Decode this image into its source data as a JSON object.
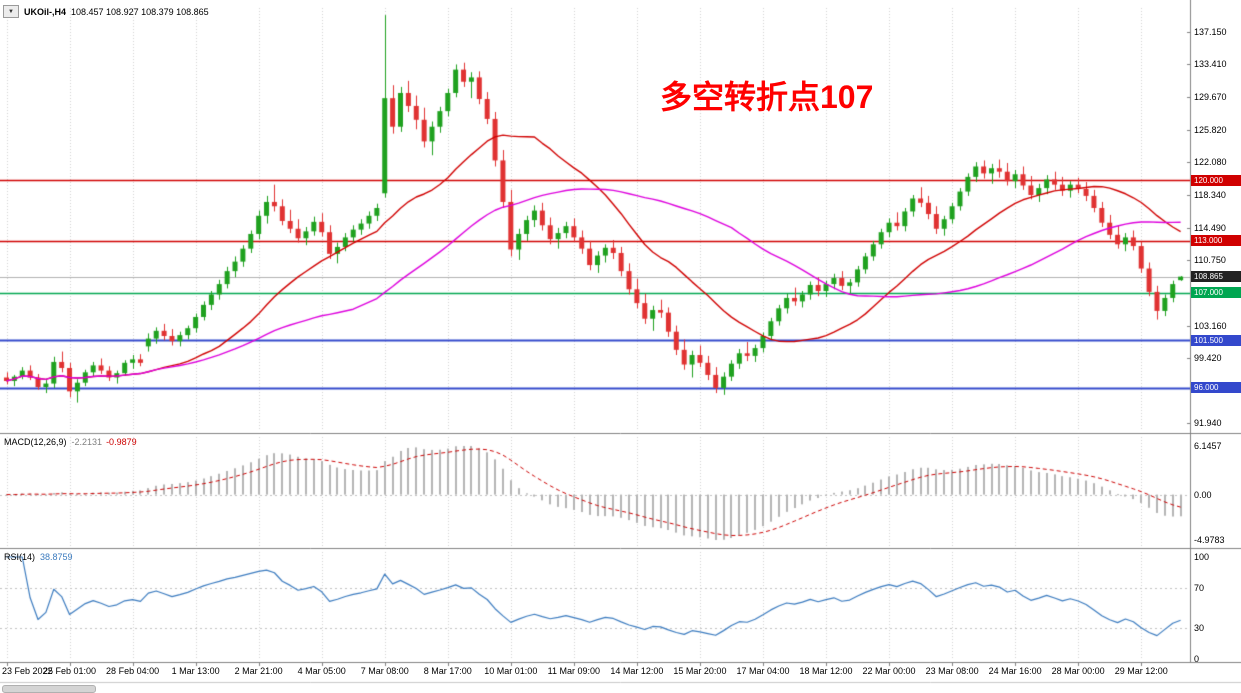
{
  "window": {
    "symbol_label": "UKOil-,H4",
    "ohlc_label": "108.457 108.927 108.379 108.865"
  },
  "annotation": {
    "text": "多空转折点107",
    "color": "#ff0000"
  },
  "price_panel": {
    "axis_labels": [
      "137.150",
      "133.410",
      "129.670",
      "125.820",
      "122.080",
      "118.340",
      "114.490",
      "110.750",
      "103.160",
      "99.420",
      "91.940"
    ],
    "current_price": {
      "value": 108.865,
      "label": "108.865",
      "badge_bg": "#222222",
      "line_color": "#b0b0b0"
    },
    "hlines": [
      {
        "price": 120.0,
        "label": "120.000",
        "color": "#d00000",
        "width": 1.5
      },
      {
        "price": 113.0,
        "label": "113.000",
        "color": "#d00000",
        "width": 1.5
      },
      {
        "price": 107.0,
        "label": "107.000",
        "color": "#00a651",
        "width": 1.5
      },
      {
        "price": 101.5,
        "label": "101.500",
        "color": "#3348cc",
        "width": 2
      },
      {
        "price": 96.0,
        "label": "96.000",
        "color": "#3348cc",
        "width": 2
      }
    ]
  },
  "macd_panel": {
    "label": "MACD(12,26,9)",
    "main_value": "-2.2131",
    "signal_value": "-0.9879",
    "axis_max": "6.1457",
    "axis_zero": "0.00",
    "axis_min": "-4.9783"
  },
  "rsi_panel": {
    "label": "RSI(14)",
    "value": "38.8759",
    "axis_labels": [
      "100",
      "70",
      "30",
      "0"
    ],
    "levels": [
      70,
      30
    ]
  },
  "time_axis": {
    "labels": [
      {
        "i": 0,
        "t": "23 Feb 2022"
      },
      {
        "i": 8,
        "t": "25 Feb 01:00"
      },
      {
        "i": 16,
        "t": "28 Feb 04:00"
      },
      {
        "i": 24,
        "t": "1 Mar 13:00"
      },
      {
        "i": 32,
        "t": "2 Mar 21:00"
      },
      {
        "i": 40,
        "t": "4 Mar 05:00"
      },
      {
        "i": 48,
        "t": "7 Mar 08:00"
      },
      {
        "i": 56,
        "t": "8 Mar 17:00"
      },
      {
        "i": 64,
        "t": "10 Mar 01:00"
      },
      {
        "i": 72,
        "t": "11 Mar 09:00"
      },
      {
        "i": 80,
        "t": "14 Mar 12:00"
      },
      {
        "i": 88,
        "t": "15 Mar 20:00"
      },
      {
        "i": 96,
        "t": "17 Mar 04:00"
      },
      {
        "i": 104,
        "t": "18 Mar 12:00"
      },
      {
        "i": 112,
        "t": "22 Mar 00:00"
      },
      {
        "i": 120,
        "t": "23 Mar 08:00"
      },
      {
        "i": 128,
        "t": "24 Mar 16:00"
      },
      {
        "i": 136,
        "t": "28 Mar 00:00"
      },
      {
        "i": 144,
        "t": "29 Mar 12:00"
      }
    ]
  },
  "chart_data": {
    "type": "candlestick",
    "symbol": "UKOil-",
    "timeframe": "H4",
    "title": "UKOil- H4 candlestick chart with MACD(12,26,9) and RSI(14) subpanels",
    "ylim": [
      91.94,
      139.93
    ],
    "colors": {
      "up_candle": "#1fa11f",
      "down_candle": "#e03232",
      "ma_fast": "#d00000",
      "ma_slow": "#dd00dd",
      "macd_histogram": "#b4b4b4",
      "macd_signal": "#cc0000",
      "macd_zero_line": "#c0c0c0",
      "rsi_line": "#3b7bbf",
      "rsi_level_line": "#c0c0c0",
      "grid": "#d0d0d0",
      "separator": "#808080"
    },
    "overlays": [
      {
        "name": "ma-fast",
        "type": "sma",
        "period": 20,
        "color": "#d00000"
      },
      {
        "name": "ma-slow",
        "type": "sma",
        "period": 45,
        "color": "#dd00dd"
      }
    ],
    "indicators": {
      "macd": {
        "fast": 12,
        "slow": 26,
        "signal": 9
      },
      "rsi": {
        "period": 14
      }
    },
    "candles": [
      [
        97.2,
        97.8,
        96.4,
        96.8
      ],
      [
        96.8,
        97.5,
        96.2,
        97.3
      ],
      [
        97.3,
        98.4,
        97.0,
        98.0
      ],
      [
        98.0,
        98.6,
        96.9,
        97.2
      ],
      [
        97.2,
        97.6,
        95.8,
        96.1
      ],
      [
        96.1,
        96.9,
        95.4,
        96.5
      ],
      [
        96.5,
        99.6,
        96.0,
        99.0
      ],
      [
        99.0,
        100.2,
        97.8,
        98.3
      ],
      [
        98.3,
        98.9,
        94.9,
        95.6
      ],
      [
        95.6,
        97.0,
        94.3,
        96.6
      ],
      [
        96.6,
        98.1,
        96.2,
        97.8
      ],
      [
        97.8,
        99.0,
        97.3,
        98.6
      ],
      [
        98.6,
        99.4,
        97.6,
        98.0
      ],
      [
        98.0,
        98.5,
        96.8,
        97.2
      ],
      [
        97.2,
        98.0,
        96.5,
        97.7
      ],
      [
        97.7,
        99.2,
        97.4,
        98.9
      ],
      [
        98.9,
        99.8,
        98.2,
        99.3
      ],
      [
        99.3,
        99.9,
        98.5,
        98.9
      ],
      [
        100.8,
        102.3,
        100.2,
        101.7
      ],
      [
        101.7,
        103.0,
        101.1,
        102.6
      ],
      [
        102.6,
        103.4,
        101.5,
        102.0
      ],
      [
        102.0,
        102.8,
        100.9,
        101.4
      ],
      [
        101.4,
        102.5,
        100.8,
        102.1
      ],
      [
        102.1,
        103.2,
        101.6,
        102.9
      ],
      [
        102.9,
        104.6,
        102.4,
        104.2
      ],
      [
        104.2,
        106.0,
        103.8,
        105.6
      ],
      [
        105.6,
        107.2,
        105.0,
        106.8
      ],
      [
        106.8,
        108.5,
        106.2,
        108.0
      ],
      [
        108.0,
        110.0,
        107.5,
        109.5
      ],
      [
        109.5,
        111.2,
        108.8,
        110.6
      ],
      [
        110.6,
        112.5,
        110.0,
        112.1
      ],
      [
        112.1,
        114.2,
        111.6,
        113.8
      ],
      [
        113.8,
        116.5,
        113.2,
        115.9
      ],
      [
        115.9,
        118.2,
        115.0,
        117.5
      ],
      [
        117.5,
        119.5,
        116.4,
        117.0
      ],
      [
        117.0,
        117.8,
        114.8,
        115.3
      ],
      [
        115.3,
        116.6,
        113.9,
        114.4
      ],
      [
        114.4,
        115.5,
        112.8,
        113.3
      ],
      [
        113.3,
        114.6,
        112.5,
        114.1
      ],
      [
        114.1,
        115.8,
        113.6,
        115.2
      ],
      [
        115.2,
        116.2,
        113.5,
        114.0
      ],
      [
        114.0,
        114.8,
        110.9,
        111.5
      ],
      [
        111.5,
        112.8,
        110.4,
        112.3
      ],
      [
        112.3,
        113.9,
        111.8,
        113.4
      ],
      [
        113.4,
        114.8,
        112.9,
        114.3
      ],
      [
        114.3,
        115.5,
        113.7,
        115.0
      ],
      [
        115.0,
        116.4,
        114.4,
        115.9
      ],
      [
        115.9,
        117.3,
        115.3,
        116.8
      ],
      [
        118.5,
        139.1,
        118.0,
        129.5
      ],
      [
        129.5,
        131.0,
        125.4,
        126.2
      ],
      [
        126.2,
        130.8,
        125.6,
        130.1
      ],
      [
        130.1,
        131.5,
        127.9,
        128.6
      ],
      [
        128.6,
        129.8,
        125.9,
        127.0
      ],
      [
        127.0,
        128.4,
        123.8,
        124.5
      ],
      [
        124.5,
        126.8,
        122.9,
        126.2
      ],
      [
        126.2,
        128.5,
        125.5,
        128.0
      ],
      [
        128.0,
        130.6,
        127.4,
        130.1
      ],
      [
        130.1,
        133.4,
        129.6,
        132.8
      ],
      [
        132.8,
        133.6,
        130.8,
        131.4
      ],
      [
        131.4,
        132.5,
        129.5,
        131.9
      ],
      [
        131.9,
        132.6,
        128.8,
        129.4
      ],
      [
        129.4,
        130.2,
        126.5,
        127.1
      ],
      [
        127.1,
        127.9,
        121.6,
        122.3
      ],
      [
        122.3,
        123.5,
        116.8,
        117.5
      ],
      [
        117.5,
        118.9,
        111.2,
        112.0
      ],
      [
        112.0,
        114.4,
        110.8,
        113.8
      ],
      [
        113.8,
        115.9,
        113.0,
        115.4
      ],
      [
        115.4,
        117.1,
        114.6,
        116.5
      ],
      [
        116.5,
        117.4,
        114.2,
        114.8
      ],
      [
        114.8,
        115.7,
        112.6,
        113.2
      ],
      [
        113.2,
        114.5,
        112.1,
        113.9
      ],
      [
        113.9,
        115.2,
        113.3,
        114.7
      ],
      [
        114.7,
        115.6,
        112.9,
        113.4
      ],
      [
        113.4,
        114.2,
        111.5,
        112.1
      ],
      [
        112.1,
        113.0,
        109.6,
        110.2
      ],
      [
        110.2,
        111.8,
        109.3,
        111.3
      ],
      [
        111.3,
        112.6,
        110.5,
        112.2
      ],
      [
        112.2,
        113.1,
        110.9,
        111.6
      ],
      [
        111.6,
        112.3,
        108.9,
        109.5
      ],
      [
        109.5,
        110.4,
        106.8,
        107.4
      ],
      [
        107.4,
        108.6,
        105.2,
        105.8
      ],
      [
        105.8,
        106.9,
        103.4,
        104.0
      ],
      [
        104.0,
        105.5,
        102.6,
        105.0
      ],
      [
        105.0,
        106.2,
        104.1,
        104.7
      ],
      [
        104.7,
        105.3,
        101.9,
        102.5
      ],
      [
        102.5,
        103.2,
        99.8,
        100.4
      ],
      [
        100.4,
        101.6,
        98.1,
        98.7
      ],
      [
        98.7,
        100.3,
        97.2,
        99.8
      ],
      [
        99.8,
        100.9,
        98.4,
        98.9
      ],
      [
        98.9,
        99.7,
        96.9,
        97.5
      ],
      [
        97.5,
        98.4,
        95.4,
        96.0
      ],
      [
        96.0,
        97.8,
        95.2,
        97.3
      ],
      [
        97.3,
        99.2,
        96.8,
        98.8
      ],
      [
        98.8,
        100.5,
        98.2,
        100.0
      ],
      [
        100.0,
        101.3,
        99.1,
        99.7
      ],
      [
        99.7,
        101.0,
        99.0,
        100.6
      ],
      [
        100.6,
        102.4,
        100.1,
        102.0
      ],
      [
        102.0,
        104.1,
        101.5,
        103.7
      ],
      [
        103.7,
        105.6,
        103.2,
        105.2
      ],
      [
        105.2,
        106.9,
        104.6,
        106.4
      ],
      [
        106.4,
        107.6,
        105.5,
        106.0
      ],
      [
        106.0,
        107.2,
        105.3,
        106.8
      ],
      [
        106.8,
        108.3,
        106.2,
        107.9
      ],
      [
        107.9,
        108.8,
        106.6,
        107.2
      ],
      [
        107.2,
        108.4,
        106.5,
        108.0
      ],
      [
        108.0,
        109.2,
        107.4,
        108.7
      ],
      [
        108.7,
        109.5,
        107.3,
        107.8
      ],
      [
        107.8,
        108.6,
        106.9,
        108.2
      ],
      [
        108.2,
        110.1,
        107.7,
        109.7
      ],
      [
        109.7,
        111.6,
        109.2,
        111.2
      ],
      [
        111.2,
        113.0,
        110.7,
        112.6
      ],
      [
        112.6,
        114.4,
        112.1,
        114.0
      ],
      [
        114.0,
        115.6,
        113.4,
        115.1
      ],
      [
        115.1,
        116.3,
        114.2,
        114.7
      ],
      [
        114.7,
        116.8,
        114.1,
        116.4
      ],
      [
        116.4,
        118.3,
        115.8,
        117.9
      ],
      [
        117.9,
        119.2,
        116.9,
        117.4
      ],
      [
        117.4,
        118.2,
        115.5,
        116.1
      ],
      [
        116.1,
        117.0,
        113.8,
        114.4
      ],
      [
        114.4,
        115.9,
        113.6,
        115.5
      ],
      [
        115.5,
        117.4,
        115.0,
        117.0
      ],
      [
        117.0,
        119.1,
        116.5,
        118.7
      ],
      [
        118.7,
        120.8,
        118.2,
        120.4
      ],
      [
        120.4,
        122.1,
        119.8,
        121.6
      ],
      [
        121.6,
        122.3,
        120.2,
        120.8
      ],
      [
        120.8,
        121.9,
        119.6,
        121.4
      ],
      [
        121.4,
        122.4,
        120.3,
        121.0
      ],
      [
        121.0,
        122.0,
        119.4,
        119.9
      ],
      [
        119.9,
        121.2,
        119.1,
        120.7
      ],
      [
        120.7,
        121.6,
        118.9,
        119.4
      ],
      [
        119.4,
        120.5,
        117.8,
        118.3
      ],
      [
        118.3,
        119.6,
        117.5,
        119.1
      ],
      [
        119.1,
        120.6,
        118.4,
        120.1
      ],
      [
        120.1,
        121.0,
        118.9,
        119.5
      ],
      [
        119.5,
        120.4,
        118.2,
        118.8
      ],
      [
        118.8,
        119.9,
        118.0,
        119.5
      ],
      [
        119.5,
        120.3,
        118.5,
        119.0
      ],
      [
        119.0,
        119.8,
        117.6,
        118.2
      ],
      [
        118.2,
        118.9,
        116.3,
        116.8
      ],
      [
        116.8,
        117.5,
        114.6,
        115.1
      ],
      [
        115.1,
        116.0,
        113.2,
        113.7
      ],
      [
        113.7,
        114.8,
        112.1,
        112.6
      ],
      [
        112.6,
        113.9,
        111.8,
        113.4
      ],
      [
        113.4,
        114.2,
        111.9,
        112.4
      ],
      [
        112.4,
        112.9,
        109.3,
        109.8
      ],
      [
        109.8,
        110.5,
        106.6,
        107.1
      ],
      [
        107.1,
        107.8,
        103.9,
        104.9
      ],
      [
        104.9,
        106.8,
        104.3,
        106.4
      ],
      [
        106.4,
        108.4,
        105.9,
        108.0
      ],
      [
        108.457,
        108.927,
        108.379,
        108.865
      ]
    ]
  }
}
